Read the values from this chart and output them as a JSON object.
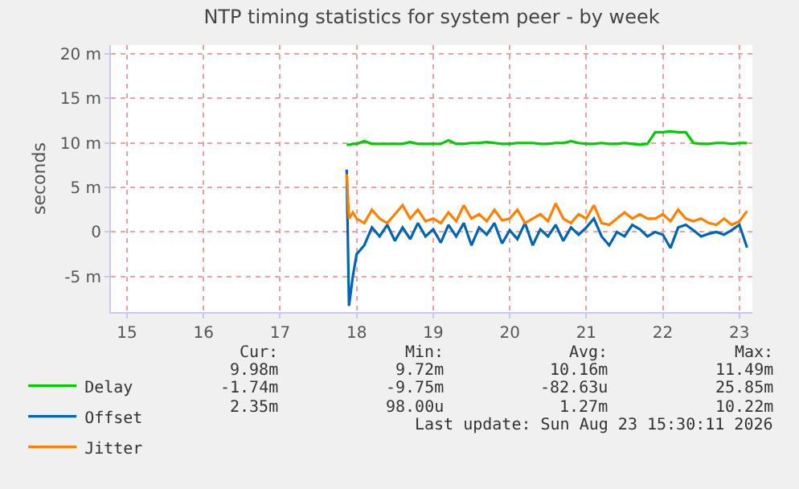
{
  "chart_data": {
    "type": "line",
    "title": "NTP timing statistics for system peer - by week",
    "ylabel": "seconds",
    "x": [
      17.87,
      17.9,
      17.95,
      18.0,
      18.1,
      18.2,
      18.3,
      18.4,
      18.5,
      18.6,
      18.7,
      18.8,
      18.9,
      19.0,
      19.1,
      19.2,
      19.3,
      19.4,
      19.5,
      19.6,
      19.7,
      19.8,
      19.9,
      20.0,
      20.1,
      20.2,
      20.3,
      20.4,
      20.5,
      20.6,
      20.7,
      20.8,
      20.9,
      21.0,
      21.1,
      21.2,
      21.3,
      21.4,
      21.5,
      21.6,
      21.7,
      21.8,
      21.9,
      22.0,
      22.1,
      22.2,
      22.3,
      22.4,
      22.5,
      22.6,
      22.7,
      22.8,
      22.9,
      23.0,
      23.1
    ],
    "series": [
      {
        "name": "Delay",
        "color": "#00cc00",
        "values": [
          9.8,
          9.8,
          9.9,
          9.9,
          10.2,
          9.9,
          9.9,
          9.9,
          9.9,
          9.9,
          10.1,
          9.9,
          9.9,
          9.9,
          9.9,
          10.3,
          9.9,
          9.9,
          10.0,
          10.0,
          10.1,
          10.0,
          9.9,
          9.9,
          10.0,
          10.0,
          10.0,
          9.9,
          9.9,
          10.0,
          10.0,
          10.2,
          10.0,
          9.9,
          9.9,
          10.0,
          9.9,
          9.9,
          10.0,
          9.9,
          9.8,
          9.9,
          11.2,
          11.2,
          11.3,
          11.2,
          11.2,
          10.0,
          9.9,
          9.9,
          10.0,
          10.0,
          9.9,
          10.0,
          9.98
        ]
      },
      {
        "name": "Offset",
        "color": "#0066b3",
        "values": [
          7,
          -8.3,
          -5,
          -2.5,
          -1.5,
          0.5,
          -0.5,
          0.8,
          -1,
          0.5,
          -0.8,
          1,
          -0.5,
          0.3,
          -1.2,
          0.8,
          -0.5,
          1,
          -1.5,
          0.5,
          -0.3,
          1,
          -1.3,
          0.2,
          -0.8,
          1,
          -1.5,
          0.3,
          -0.5,
          0.8,
          -1,
          0.5,
          -0.3,
          0.5,
          1.5,
          -0.5,
          -1.5,
          0,
          -0.5,
          0.8,
          0.3,
          -0.5,
          0,
          -0.3,
          -1.8,
          0.5,
          0.8,
          0.2,
          -0.5,
          -0.2,
          0,
          -0.3,
          0.2,
          0.8,
          -1.74
        ]
      },
      {
        "name": "Jitter",
        "color": "#ff8000",
        "values": [
          6.5,
          1.5,
          2.2,
          1.5,
          1,
          2.5,
          1.5,
          1,
          2,
          3,
          1.5,
          2.5,
          1.2,
          1.5,
          1,
          2.2,
          1.2,
          3,
          1.5,
          2,
          1.2,
          2.5,
          1.3,
          1.5,
          2.5,
          1,
          1.5,
          2,
          1.2,
          3.2,
          1.5,
          1,
          2,
          1.5,
          3,
          1,
          0.8,
          1.5,
          2.2,
          1.5,
          2,
          1.5,
          1.5,
          2,
          1.2,
          2.5,
          1.5,
          1.2,
          1.5,
          1,
          0.8,
          1.5,
          0.8,
          1.2,
          2.35
        ]
      }
    ],
    "xlim": [
      14.79,
      23.17
    ],
    "xticks": [
      15,
      16,
      17,
      18,
      19,
      20,
      21,
      22,
      23
    ],
    "ylim": [
      -9,
      21
    ],
    "yticks": [
      {
        "value": -5,
        "label": "-5 m"
      },
      {
        "value": 0,
        "label": "0"
      },
      {
        "value": 5,
        "label": "5 m"
      },
      {
        "value": 10,
        "label": "10 m"
      },
      {
        "value": 15,
        "label": "15 m"
      },
      {
        "value": 20,
        "label": "20 m"
      }
    ],
    "grid": true,
    "legend": "bottom left",
    "marker": "none",
    "line_style": "solid",
    "annotations": [
      "Cur:",
      "Min:",
      "Avg:",
      "Max:",
      "9.98m",
      "9.72m",
      "10.16m",
      "11.49m",
      "-1.74m",
      "-9.75m",
      "-82.63u",
      "25.85m",
      "2.35m",
      "98.00u",
      "1.27m",
      "10.22m",
      "Last update: Sun Aug 23 15:30:11 2026"
    ]
  }
}
